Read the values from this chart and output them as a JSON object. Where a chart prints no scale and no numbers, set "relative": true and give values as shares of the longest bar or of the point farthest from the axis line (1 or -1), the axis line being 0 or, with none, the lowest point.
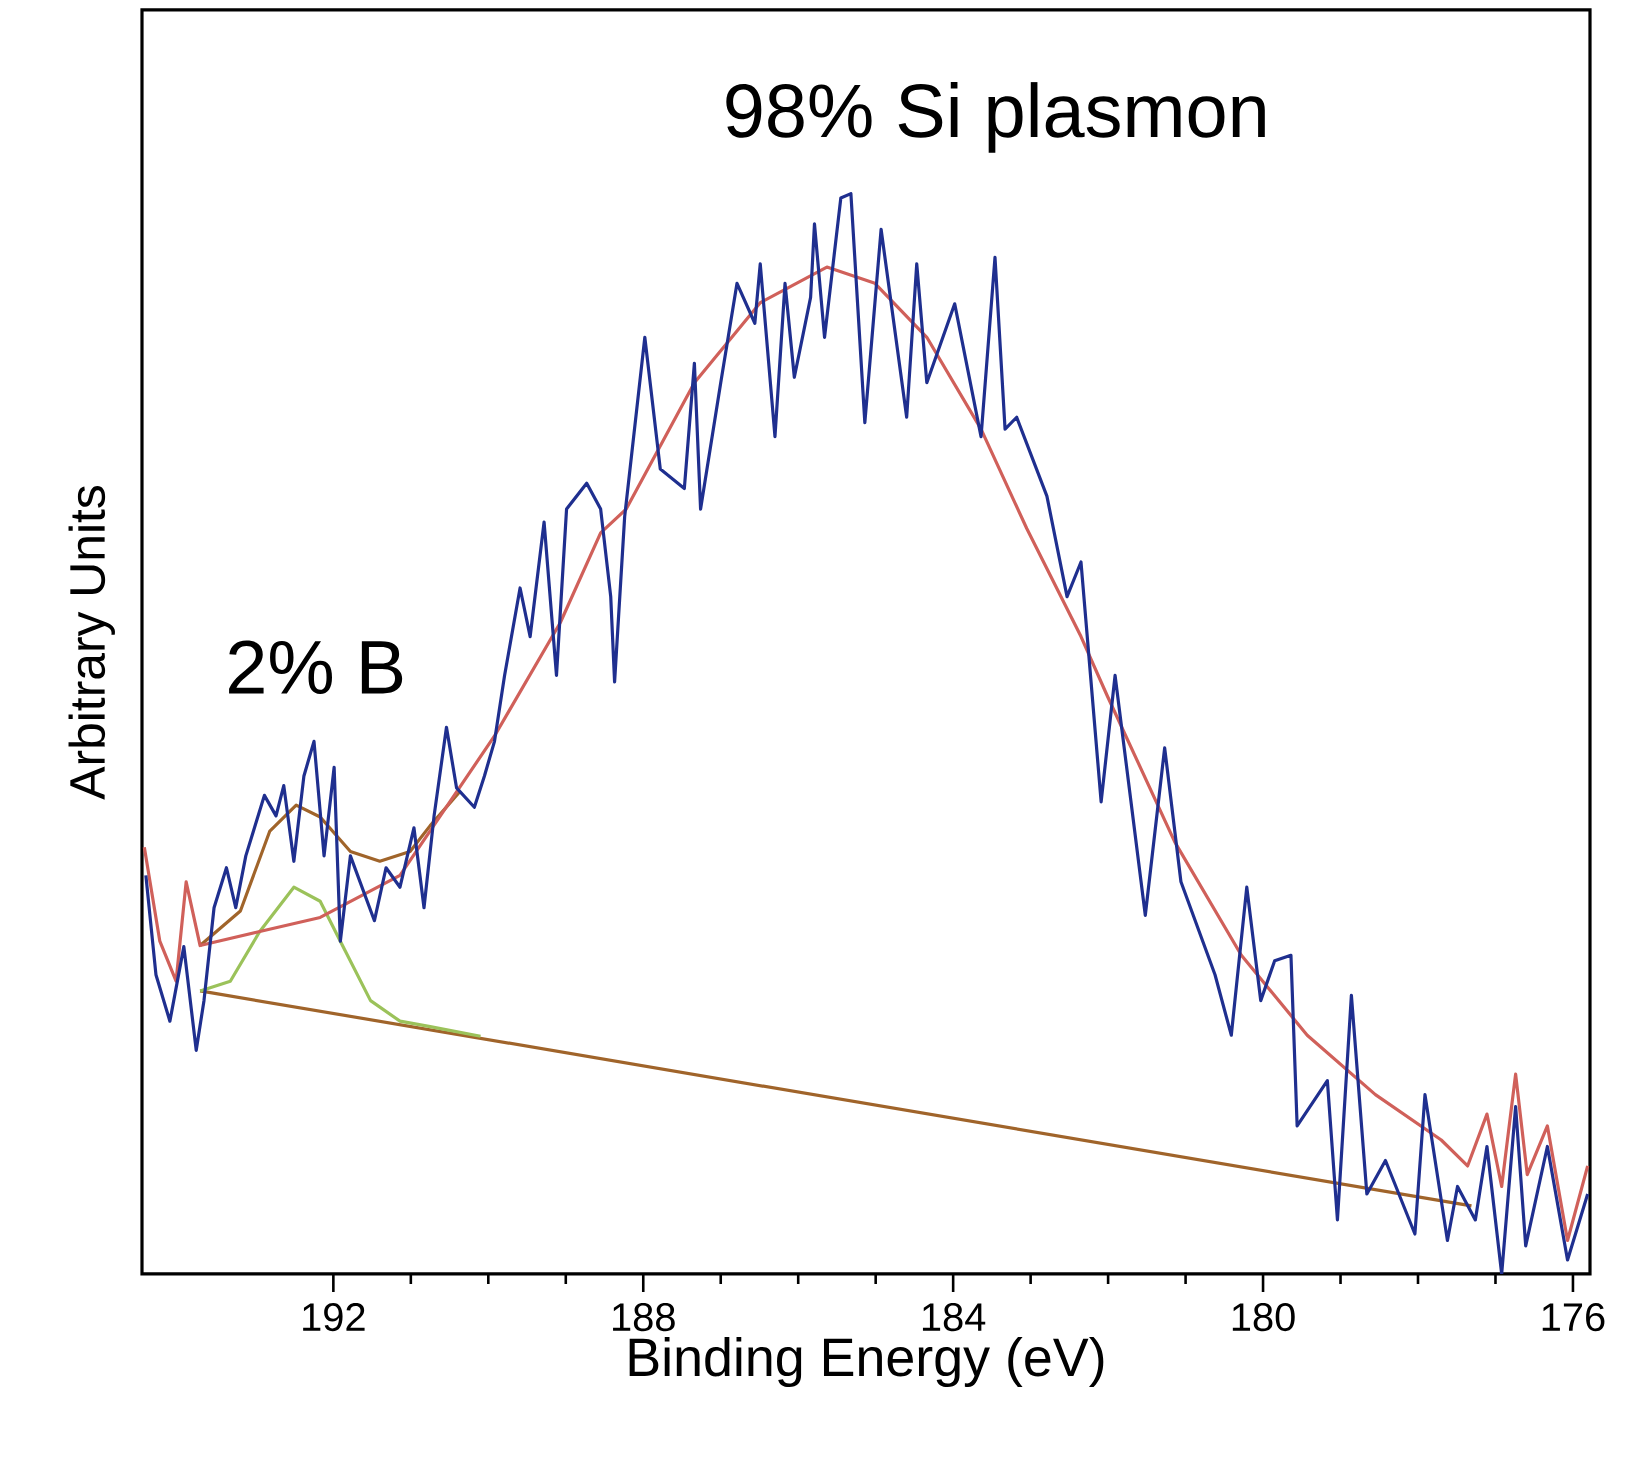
{
  "chart_data": {
    "type": "line",
    "xlabel": "Binding Energy (eV)",
    "ylabel": "Arbitrary Units",
    "relative": true,
    "xlim": [
      194.47,
      175.78
    ],
    "xticks": [
      192,
      188,
      184,
      180,
      176
    ],
    "annotations": [
      "98% Si plasmon",
      "2% B"
    ],
    "series": [
      {
        "color": "#a0642a",
        "x": [
          193.72,
          177.31
        ],
        "values": [
          0.262,
          0.063
        ]
      },
      {
        "color": "#9bc25a",
        "x": [
          193.72,
          193.33,
          192.95,
          192.51,
          192.17,
          191.91,
          191.52,
          191.14,
          190.75,
          190.1
        ],
        "values": [
          0.262,
          0.271,
          0.317,
          0.358,
          0.345,
          0.308,
          0.253,
          0.234,
          0.229,
          0.22
        ]
      },
      {
        "color": "#a0642a",
        "x": [
          193.72,
          193.2,
          192.82,
          192.48,
          192.17,
          191.78,
          191.4,
          191.01,
          190.75,
          190.36
        ],
        "values": [
          0.304,
          0.336,
          0.41,
          0.434,
          0.423,
          0.391,
          0.382,
          0.391,
          0.415,
          0.447
        ]
      },
      {
        "color": "#d0605a",
        "x": [
          194.44,
          194.24,
          194.03,
          193.9,
          193.72,
          192.95,
          192.17,
          191.14,
          189.92,
          189.07,
          188.55,
          188.22,
          187.34,
          186.49,
          185.63,
          185.01,
          184.34,
          183.64,
          183.05,
          182.35,
          182.01,
          181.14,
          180.28,
          179.43,
          178.55,
          177.7,
          177.36,
          177.11,
          176.92,
          176.74,
          176.59,
          176.33,
          176.07,
          175.81
        ],
        "values": [
          0.395,
          0.308,
          0.271,
          0.363,
          0.304,
          0.317,
          0.33,
          0.369,
          0.498,
          0.603,
          0.686,
          0.708,
          0.825,
          0.899,
          0.932,
          0.917,
          0.867,
          0.782,
          0.69,
          0.59,
          0.535,
          0.4,
          0.295,
          0.221,
          0.166,
          0.124,
          0.1,
          0.148,
          0.081,
          0.185,
          0.092,
          0.137,
          0.031,
          0.1
        ]
      },
      {
        "color": "#1f2f8f",
        "x": [
          194.42,
          194.29,
          194.11,
          193.93,
          193.77,
          193.67,
          193.54,
          193.38,
          193.26,
          193.13,
          192.89,
          192.74,
          192.64,
          192.51,
          192.38,
          192.25,
          192.12,
          191.99,
          191.91,
          191.78,
          191.47,
          191.32,
          191.14,
          190.96,
          190.83,
          190.7,
          190.54,
          190.41,
          190.18,
          190.05,
          189.92,
          189.79,
          189.59,
          189.46,
          189.28,
          189.12,
          188.99,
          188.73,
          188.55,
          188.42,
          188.37,
          188.24,
          187.98,
          187.78,
          187.47,
          187.34,
          187.26,
          187.0,
          186.79,
          186.56,
          186.49,
          186.3,
          186.17,
          186.05,
          185.84,
          185.79,
          185.66,
          185.45,
          185.32,
          185.14,
          184.93,
          184.6,
          184.47,
          184.34,
          183.98,
          183.64,
          183.46,
          183.33,
          183.18,
          182.79,
          182.53,
          182.35,
          182.09,
          181.91,
          181.52,
          181.27,
          181.06,
          180.62,
          180.41,
          180.21,
          180.03,
          179.85,
          179.64,
          179.56,
          179.17,
          179.04,
          178.86,
          178.66,
          178.42,
          178.04,
          177.91,
          177.62,
          177.49,
          177.26,
          177.11,
          176.92,
          176.74,
          176.61,
          176.33,
          176.07,
          175.81
        ],
        "values": [
          0.369,
          0.277,
          0.234,
          0.303,
          0.207,
          0.253,
          0.339,
          0.376,
          0.339,
          0.387,
          0.443,
          0.424,
          0.452,
          0.382,
          0.461,
          0.493,
          0.387,
          0.469,
          0.308,
          0.387,
          0.327,
          0.376,
          0.358,
          0.413,
          0.339,
          0.424,
          0.506,
          0.45,
          0.432,
          0.461,
          0.493,
          0.554,
          0.635,
          0.59,
          0.696,
          0.554,
          0.708,
          0.732,
          0.708,
          0.627,
          0.548,
          0.701,
          0.867,
          0.745,
          0.727,
          0.843,
          0.708,
          0.825,
          0.917,
          0.88,
          0.935,
          0.775,
          0.917,
          0.83,
          0.904,
          0.972,
          0.867,
          0.996,
          1.0,
          0.788,
          0.967,
          0.793,
          0.935,
          0.825,
          0.898,
          0.775,
          0.941,
          0.782,
          0.793,
          0.72,
          0.627,
          0.659,
          0.437,
          0.554,
          0.332,
          0.487,
          0.363,
          0.277,
          0.221,
          0.358,
          0.253,
          0.29,
          0.295,
          0.137,
          0.179,
          0.05,
          0.258,
          0.074,
          0.105,
          0.037,
          0.166,
          0.031,
          0.081,
          0.05,
          0.118,
          0.0,
          0.155,
          0.026,
          0.118,
          0.013,
          0.074
        ]
      }
    ]
  }
}
